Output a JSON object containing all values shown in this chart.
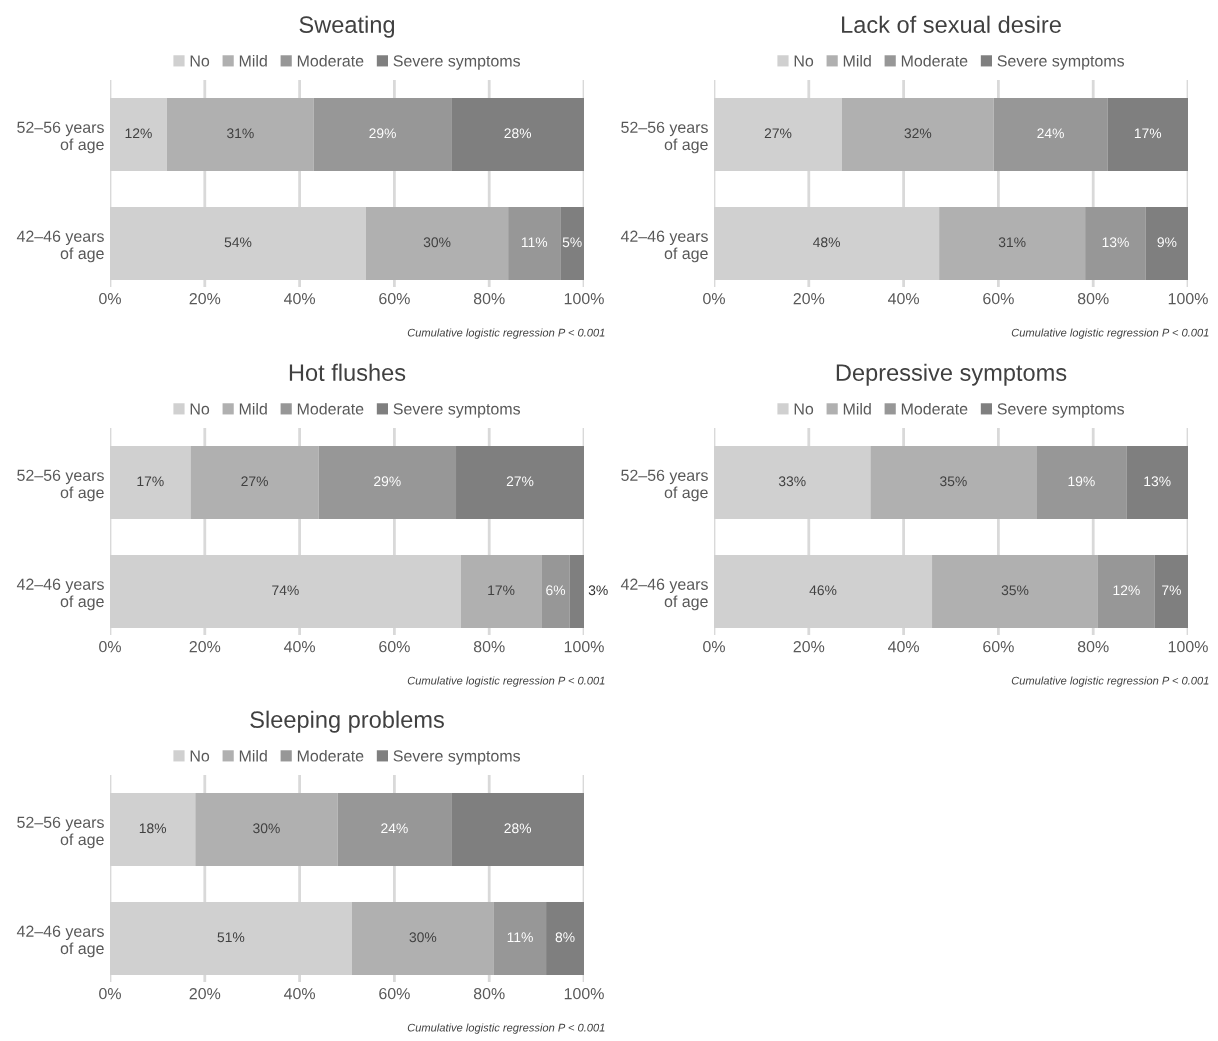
{
  "chart_data": [
    {
      "type": "bar",
      "orientation": "horizontal",
      "stacked": true,
      "title": "Sweating",
      "categories": [
        "52–56 years\nof age",
        "42–46 years\nof age"
      ],
      "xlim": [
        0,
        100
      ],
      "xticks": [
        {
          "value": 0,
          "label": "0%"
        },
        {
          "value": 20,
          "label": "20%"
        },
        {
          "value": 40,
          "label": "40%"
        },
        {
          "value": 60,
          "label": "60%"
        },
        {
          "value": 80,
          "label": "80%"
        },
        {
          "value": 100,
          "label": "100%"
        }
      ],
      "grid": "x",
      "legend": "top",
      "annotations": [
        "Cumulative logistic regression P < 0.001"
      ],
      "series": [
        {
          "name": "No",
          "color": "#d0d0d0",
          "values": [
            12,
            54
          ],
          "value_labels": [
            "12%",
            "54%"
          ]
        },
        {
          "name": "Mild",
          "color": "#b0b0b0",
          "values": [
            31,
            30
          ],
          "value_labels": [
            "31%",
            "30%"
          ]
        },
        {
          "name": "Moderate",
          "color": "#979797",
          "values": [
            29,
            11
          ],
          "value_labels": [
            "29%",
            "11%"
          ]
        },
        {
          "name": "Severe symptoms",
          "color": "#7f7f7f",
          "values": [
            28,
            5
          ],
          "value_labels": [
            "28%",
            "5%"
          ]
        }
      ]
    },
    {
      "type": "bar",
      "orientation": "horizontal",
      "stacked": true,
      "title": "Lack of sexual desire",
      "categories": [
        "52–56 years\nof age",
        "42–46 years\nof age"
      ],
      "xlim": [
        0,
        100
      ],
      "xticks": [
        {
          "value": 0,
          "label": "0%"
        },
        {
          "value": 20,
          "label": "20%"
        },
        {
          "value": 40,
          "label": "40%"
        },
        {
          "value": 60,
          "label": "60%"
        },
        {
          "value": 80,
          "label": "80%"
        },
        {
          "value": 100,
          "label": "100%"
        }
      ],
      "grid": "x",
      "legend": "top",
      "annotations": [
        "Cumulative logistic regression P < 0.001"
      ],
      "series": [
        {
          "name": "No",
          "color": "#d0d0d0",
          "values": [
            27,
            47.5
          ],
          "value_labels": [
            "27%",
            "48%"
          ]
        },
        {
          "name": "Mild",
          "color": "#b0b0b0",
          "values": [
            32,
            30.8
          ],
          "value_labels": [
            "32%",
            "31%"
          ]
        },
        {
          "name": "Moderate",
          "color": "#979797",
          "values": [
            24,
            12.8
          ],
          "value_labels": [
            "24%",
            "13%"
          ]
        },
        {
          "name": "Severe symptoms",
          "color": "#7f7f7f",
          "values": [
            17,
            8.9
          ],
          "value_labels": [
            "17%",
            "9%"
          ]
        }
      ]
    },
    {
      "type": "bar",
      "orientation": "horizontal",
      "stacked": true,
      "title": "Hot flushes",
      "categories": [
        "52–56 years\nof age",
        "42–46 years\nof age"
      ],
      "xlim": [
        0,
        100
      ],
      "xticks": [
        {
          "value": 0,
          "label": "0%"
        },
        {
          "value": 20,
          "label": "20%"
        },
        {
          "value": 40,
          "label": "40%"
        },
        {
          "value": 60,
          "label": "60%"
        },
        {
          "value": 80,
          "label": "80%"
        },
        {
          "value": 100,
          "label": "100%"
        }
      ],
      "grid": "x",
      "legend": "top",
      "annotations": [
        "Cumulative logistic regression P < 0.001"
      ],
      "series": [
        {
          "name": "No",
          "color": "#d0d0d0",
          "values": [
            17,
            74
          ],
          "value_labels": [
            "17%",
            "74%"
          ]
        },
        {
          "name": "Mild",
          "color": "#b0b0b0",
          "values": [
            27,
            17
          ],
          "value_labels": [
            "27%",
            "17%"
          ]
        },
        {
          "name": "Moderate",
          "color": "#979797",
          "values": [
            29,
            6
          ],
          "value_labels": [
            "29%",
            "6%"
          ]
        },
        {
          "name": "Severe symptoms",
          "color": "#7f7f7f",
          "values": [
            27,
            3
          ],
          "value_labels": [
            "27%",
            "3%"
          ]
        }
      ]
    },
    {
      "type": "bar",
      "orientation": "horizontal",
      "stacked": true,
      "title": "Depressive symptoms",
      "categories": [
        "52–56 years\nof age",
        "42–46 years\nof age"
      ],
      "xlim": [
        0,
        100
      ],
      "xticks": [
        {
          "value": 0,
          "label": "0%"
        },
        {
          "value": 20,
          "label": "20%"
        },
        {
          "value": 40,
          "label": "40%"
        },
        {
          "value": 60,
          "label": "60%"
        },
        {
          "value": 80,
          "label": "80%"
        },
        {
          "value": 100,
          "label": "100%"
        }
      ],
      "grid": "x",
      "legend": "top",
      "annotations": [
        "Cumulative logistic regression P < 0.001"
      ],
      "series": [
        {
          "name": "No",
          "color": "#d0d0d0",
          "values": [
            33,
            46
          ],
          "value_labels": [
            "33%",
            "46%"
          ]
        },
        {
          "name": "Mild",
          "color": "#b0b0b0",
          "values": [
            35,
            35
          ],
          "value_labels": [
            "35%",
            "35%"
          ]
        },
        {
          "name": "Moderate",
          "color": "#979797",
          "values": [
            19,
            12
          ],
          "value_labels": [
            "19%",
            "12%"
          ]
        },
        {
          "name": "Severe symptoms",
          "color": "#7f7f7f",
          "values": [
            13,
            7
          ],
          "value_labels": [
            "13%",
            "7%"
          ]
        }
      ]
    },
    {
      "type": "bar",
      "orientation": "horizontal",
      "stacked": true,
      "title": "Sleeping problems",
      "categories": [
        "52–56 years\nof age",
        "42–46 years\nof age"
      ],
      "xlim": [
        0,
        100
      ],
      "xticks": [
        {
          "value": 0,
          "label": "0%"
        },
        {
          "value": 20,
          "label": "20%"
        },
        {
          "value": 40,
          "label": "40%"
        },
        {
          "value": 60,
          "label": "60%"
        },
        {
          "value": 80,
          "label": "80%"
        },
        {
          "value": 100,
          "label": "100%"
        }
      ],
      "grid": "x",
      "legend": "top",
      "annotations": [
        "Cumulative logistic regression P < 0.001"
      ],
      "series": [
        {
          "name": "No",
          "color": "#d0d0d0",
          "values": [
            18,
            51
          ],
          "value_labels": [
            "18%",
            "51%"
          ]
        },
        {
          "name": "Mild",
          "color": "#b0b0b0",
          "values": [
            30,
            30
          ],
          "value_labels": [
            "30%",
            "30%"
          ]
        },
        {
          "name": "Moderate",
          "color": "#979797",
          "values": [
            24,
            11
          ],
          "value_labels": [
            "24%",
            "11%"
          ]
        },
        {
          "name": "Severe symptoms",
          "color": "#7f7f7f",
          "values": [
            28,
            8
          ],
          "value_labels": [
            "28%",
            "8%"
          ]
        }
      ]
    }
  ]
}
